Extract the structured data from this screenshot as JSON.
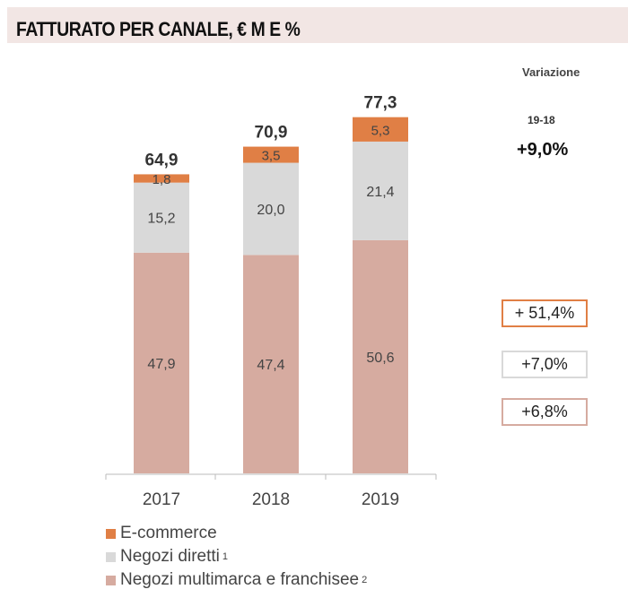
{
  "header": {
    "title": "FATTURATO PER CANALE, € M E %"
  },
  "variation": {
    "label": "Variazione",
    "period": "19-18",
    "total": "+9,0%",
    "by_channel": [
      {
        "series": "E-commerce",
        "value": "+ 51,4%",
        "color": "#e07f45"
      },
      {
        "series": "Negozi diretti",
        "value": "+7,0%",
        "color": "#d9d9d9"
      },
      {
        "series": "Negozi multimarca e franchisee",
        "value": "+6,8%",
        "color": "#d6aba0"
      }
    ]
  },
  "chart_data": {
    "type": "bar",
    "stacked": true,
    "title": "FATTURATO PER CANALE, € M E %",
    "categories": [
      "2017",
      "2018",
      "2019"
    ],
    "series": [
      {
        "name": "Negozi multimarca e franchisee",
        "footnote": "2",
        "color": "#d6aba0",
        "values": [
          47.9,
          47.4,
          50.6
        ],
        "labels": [
          "47,9",
          "47,4",
          "50,6"
        ]
      },
      {
        "name": "Negozi diretti",
        "footnote": "1",
        "color": "#d9d9d9",
        "values": [
          15.2,
          20.0,
          21.4
        ],
        "labels": [
          "15,2",
          "20,0",
          "21,4"
        ]
      },
      {
        "name": "E-commerce",
        "footnote": "",
        "color": "#e07f45",
        "values": [
          1.8,
          3.5,
          5.3
        ],
        "labels": [
          "1,8",
          "3,5",
          "5,3"
        ]
      }
    ],
    "totals": [
      64.9,
      70.9,
      77.3
    ],
    "total_labels": [
      "64,9",
      "70,9",
      "77,3"
    ],
    "legend_position": "bottom-left",
    "grid": false
  }
}
